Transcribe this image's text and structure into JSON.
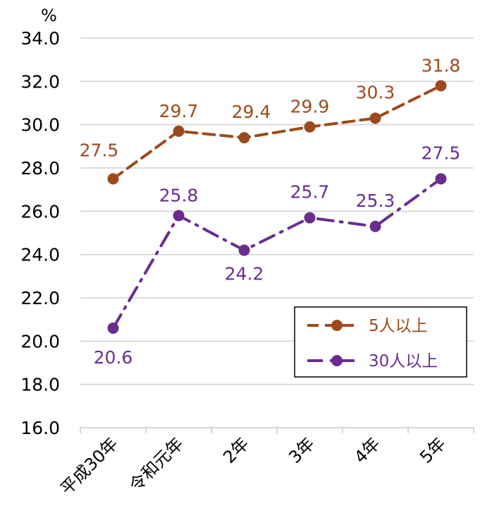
{
  "chart_data": {
    "type": "line",
    "title": "",
    "xlabel": "",
    "ylabel": "%",
    "categories": [
      "平成30年",
      "令和元年",
      "2年",
      "3年",
      "4年",
      "5年"
    ],
    "ylim": [
      16.0,
      34.0
    ],
    "yticks": [
      "16.0",
      "18.0",
      "20.0",
      "22.0",
      "24.0",
      "26.0",
      "28.0",
      "30.0",
      "32.0",
      "34.0"
    ],
    "grid": true,
    "legend_position": "bottom-right",
    "series": [
      {
        "name": "5人以上",
        "values": [
          27.5,
          29.7,
          29.4,
          29.9,
          30.3,
          31.8
        ],
        "labels": [
          "27.5",
          "29.7",
          "29.4",
          "29.9",
          "30.3",
          "31.8"
        ],
        "color": "#9c4a1c",
        "dash": "dashed"
      },
      {
        "name": "30人以上",
        "values": [
          20.6,
          25.8,
          24.2,
          25.7,
          25.3,
          27.5
        ],
        "labels": [
          "20.6",
          "25.8",
          "24.2",
          "25.7",
          "25.3",
          "27.5"
        ],
        "color": "#6a2d8f",
        "dash": "dash-dot"
      }
    ]
  }
}
